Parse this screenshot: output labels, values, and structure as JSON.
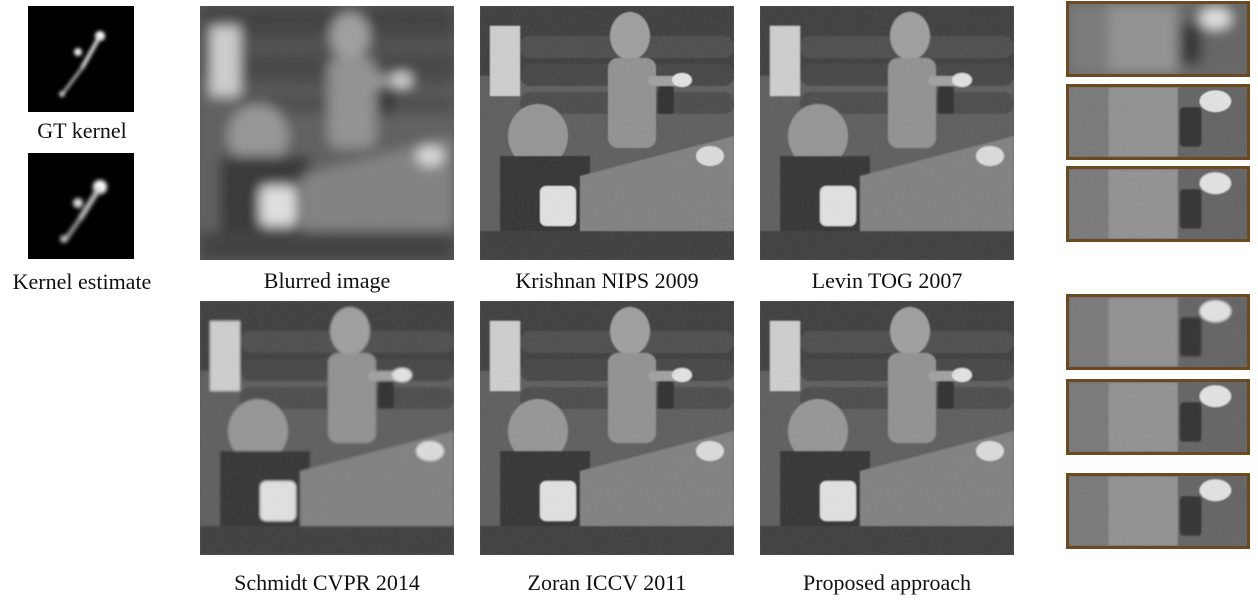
{
  "kernels": {
    "gt_label": "GT kernel",
    "estimate_label": "Kernel estimate"
  },
  "results": [
    {
      "label": "Blurred image",
      "blur": 6
    },
    {
      "label": "Krishnan NIPS 2009",
      "blur": 0.6
    },
    {
      "label": "Levin TOG 2007",
      "blur": 0.8
    },
    {
      "label": "Schmidt CVPR 2014",
      "blur": 1.4
    },
    {
      "label": "Zoran ICCV 2011",
      "blur": 0.9
    },
    {
      "label": "Proposed approach",
      "blur": 0.7
    }
  ],
  "colors": {
    "crop_border": "#6b4a22",
    "background": "#ffffff"
  }
}
